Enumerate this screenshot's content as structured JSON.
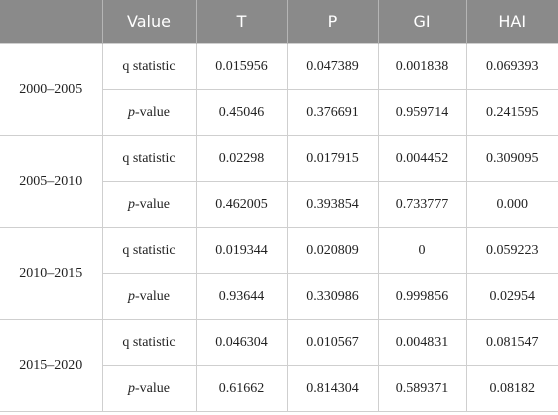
{
  "table": {
    "header": [
      "Value",
      "T",
      "P",
      "GI",
      "HAI"
    ],
    "groups": [
      {
        "period": "2000–2005",
        "rows": [
          {
            "label": "q statistic",
            "values": [
              "0.015956",
              "0.047389",
              "0.001838",
              "0.069393"
            ]
          },
          {
            "label": "p-value",
            "values": [
              "0.45046",
              "0.376691",
              "0.959714",
              "0.241595"
            ]
          }
        ]
      },
      {
        "period": "2005–2010",
        "rows": [
          {
            "label": "q statistic",
            "values": [
              "0.02298",
              "0.017915",
              "0.004452",
              "0.309095"
            ]
          },
          {
            "label": "p-value",
            "values": [
              "0.462005",
              "0.393854",
              "0.733777",
              "0.000"
            ]
          }
        ]
      },
      {
        "period": "2010–2015",
        "rows": [
          {
            "label": "q statistic",
            "values": [
              "0.019344",
              "0.020809",
              "0",
              "0.059223"
            ]
          },
          {
            "label": "p-value",
            "values": [
              "0.93644",
              "0.330986",
              "0.999856",
              "0.02954"
            ]
          }
        ]
      },
      {
        "period": "2015–2020",
        "rows": [
          {
            "label": "q statistic",
            "values": [
              "0.046304",
              "0.010567",
              "0.004831",
              "0.081547"
            ]
          },
          {
            "label": "p-value",
            "values": [
              "0.61662",
              "0.814304",
              "0.589371",
              "0.08182"
            ]
          }
        ]
      }
    ]
  }
}
